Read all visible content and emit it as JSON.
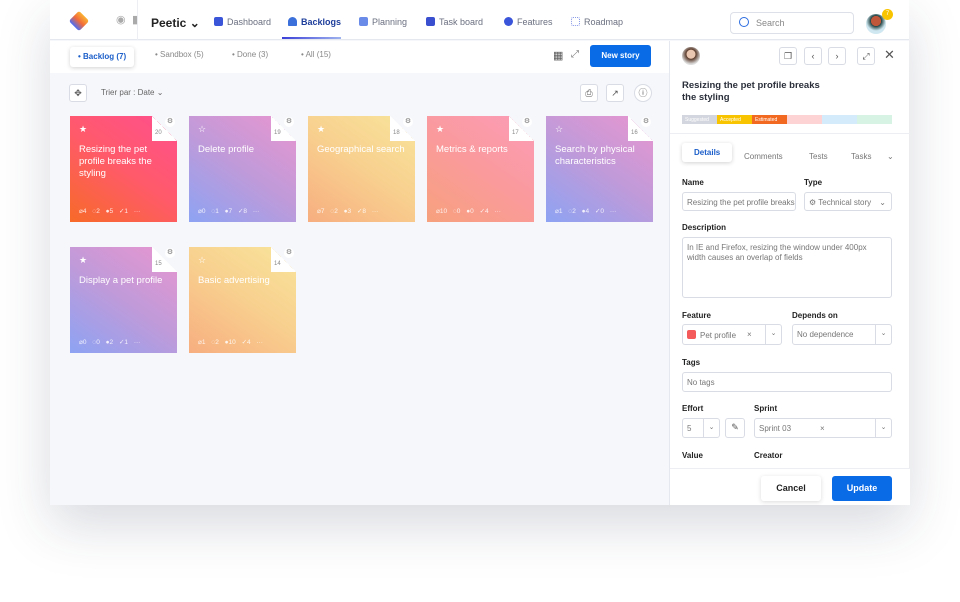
{
  "nav": {
    "project": "Peetic",
    "items": [
      {
        "label": "Dashboard",
        "color": "#3b55d9"
      },
      {
        "label": "Backlogs",
        "color": "#3b6fd9",
        "active": true
      },
      {
        "label": "Planning",
        "color": "#6a8be8"
      },
      {
        "label": "Task board",
        "color": "#3a4fcf"
      },
      {
        "label": "Features",
        "color": "#3a55d9"
      },
      {
        "label": "Roadmap",
        "color": "#8a9be8"
      }
    ],
    "search_placeholder": "Search",
    "notification_count": "7"
  },
  "subtabs": [
    "Backlog (7)",
    "Sandbox (5)",
    "Done (3)",
    "All (15)"
  ],
  "new_story": "New story",
  "sort_label": "Trier par : Date",
  "cards": [
    {
      "num": "20",
      "title": "Resizing the pet profile breaks the styling",
      "starred": true,
      "stats": "⌀4 ◌2 ●5 ✓1 ···",
      "g": "g1"
    },
    {
      "num": "19",
      "title": "Delete profile",
      "starred": false,
      "stats": "⌀0 ◌1 ●7 ✓8 ···",
      "g": "g2"
    },
    {
      "num": "18",
      "title": "Geographical search",
      "starred": true,
      "stats": "⌀7 ◌2 ●3 ✓8 ···",
      "g": "g3"
    },
    {
      "num": "17",
      "title": "Metrics & reports",
      "starred": true,
      "stats": "⌀10 ◌0 ●0 ✓4 ···",
      "g": "g4"
    },
    {
      "num": "16",
      "title": "Search by physical characteristics",
      "starred": false,
      "stats": "⌀1 ◌2 ●4 ✓0 ···",
      "g": "g2"
    },
    {
      "num": "15",
      "title": "Display a pet profile",
      "starred": true,
      "stats": "⌀0 ◌0 ●2 ✓1 ···",
      "g": "g2"
    },
    {
      "num": "14",
      "title": "Basic advertising",
      "starred": false,
      "stats": "⌀1 ◌2 ●10 ✓4 ···",
      "g": "g3"
    }
  ],
  "panel": {
    "title": "Resizing the pet profile breaks the styling",
    "statuses": [
      {
        "label": "Suggested",
        "color": "#d3d6de"
      },
      {
        "label": "Accepted",
        "color": "#f8c400"
      },
      {
        "label": "Estimated",
        "color": "#f26a22"
      },
      {
        "label": "",
        "color": "#fdd3d3"
      },
      {
        "label": "",
        "color": "#d3ebfb"
      },
      {
        "label": "",
        "color": "#d6f3e4"
      }
    ],
    "tabs": [
      "Details",
      "Comments",
      "Tests",
      "Tasks"
    ],
    "name_label": "Name",
    "name_value": "Resizing the pet profile breaks the styling",
    "type_label": "Type",
    "type_value": "⚙ Technical story",
    "description_label": "Description",
    "description_value": "In IE and Firefox, resizing the window under 400px width causes an overlap of fields",
    "feature_label": "Feature",
    "feature_value": "Pet profile",
    "depends_label": "Depends on",
    "depends_value": "No dependence",
    "tags_label": "Tags",
    "tags_value": "No tags",
    "effort_label": "Effort",
    "effort_value": "5",
    "sprint_label": "Sprint",
    "sprint_value": "Sprint 03",
    "value_label": "Value",
    "creator_label": "Creator",
    "cancel": "Cancel",
    "update": "Update"
  }
}
